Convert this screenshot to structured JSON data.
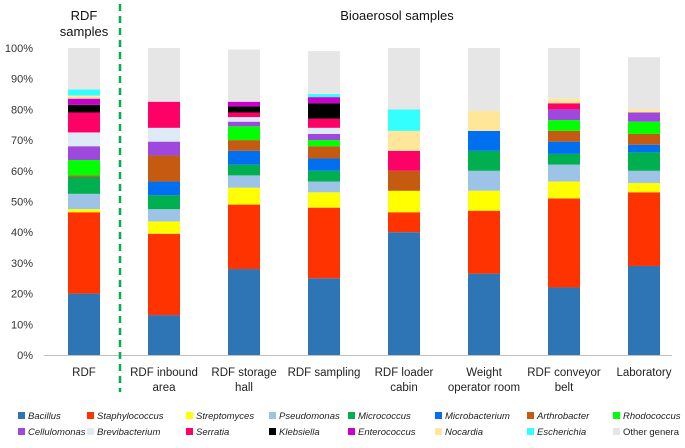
{
  "chart_data": {
    "type": "bar",
    "stacked": true,
    "percent": true,
    "title": "",
    "xlabel": "",
    "ylabel": "",
    "ylim": [
      0,
      100
    ],
    "y_ticks": [
      "0%",
      "10%",
      "20%",
      "30%",
      "40%",
      "50%",
      "60%",
      "70%",
      "80%",
      "90%",
      "100%"
    ],
    "y_tick_values": [
      0,
      10,
      20,
      30,
      40,
      50,
      60,
      70,
      80,
      90,
      100
    ],
    "group_labels": {
      "rdf_samples": [
        "RDF",
        "samples"
      ],
      "bioaerosol_samples": "Bioaerosol samples"
    },
    "categories": [
      [
        "RDF"
      ],
      [
        "RDF inbound",
        "area"
      ],
      [
        "RDF storage",
        "hall"
      ],
      [
        "RDF sampling"
      ],
      [
        "RDF loader",
        "cabin"
      ],
      [
        "Weight",
        "operator room"
      ],
      [
        "RDF conveyor",
        "belt"
      ],
      [
        "Laboratory"
      ]
    ],
    "series": [
      {
        "name": "Bacillus",
        "italic": true,
        "color": "#2E75B6",
        "values": [
          20,
          13,
          28,
          25,
          40,
          26.5,
          22,
          29
        ]
      },
      {
        "name": "Staphylococcus",
        "italic": true,
        "color": "#FF3300",
        "values": [
          26.5,
          26.5,
          21,
          23,
          6.5,
          20.5,
          29,
          24
        ]
      },
      {
        "name": "Streptomyces",
        "italic": true,
        "color": "#FFFF00",
        "values": [
          1,
          4,
          5.5,
          5,
          7,
          6.5,
          5.5,
          3
        ]
      },
      {
        "name": "Pseudomonas",
        "italic": true,
        "color": "#9DC3E6",
        "values": [
          5,
          4,
          4,
          3.5,
          0,
          6.5,
          5.5,
          4
        ]
      },
      {
        "name": "Micrococcus",
        "italic": true,
        "color": "#00B050",
        "values": [
          5.5,
          4.5,
          3.5,
          3.5,
          0,
          6.5,
          3.5,
          6
        ]
      },
      {
        "name": "Microbacterium",
        "italic": true,
        "color": "#0070F0",
        "values": [
          0,
          4.5,
          4.5,
          4,
          0,
          6.5,
          4,
          2.5
        ]
      },
      {
        "name": "Arthrobacter",
        "italic": true,
        "color": "#C55A11",
        "values": [
          0.5,
          8.5,
          3.5,
          4,
          6.5,
          0,
          3.5,
          3.5
        ]
      },
      {
        "name": "Rhodococcus",
        "italic": true,
        "color": "#00FF00",
        "values": [
          5,
          0,
          4.5,
          2,
          0,
          0,
          3.5,
          4
        ]
      },
      {
        "name": "Cellulomonas",
        "italic": true,
        "color": "#9E48DE",
        "values": [
          4.5,
          4.5,
          1.5,
          2,
          0,
          0,
          3.5,
          3
        ]
      },
      {
        "name": "Brevibacterium",
        "italic": true,
        "color": "#DEEBF7",
        "values": [
          4.5,
          4.5,
          1.5,
          2,
          0,
          0,
          0,
          0
        ]
      },
      {
        "name": "Serratia",
        "italic": true,
        "color": "#FF0066",
        "values": [
          6.5,
          8.5,
          1.5,
          3,
          6.5,
          0,
          2,
          0
        ]
      },
      {
        "name": "Klebsiella",
        "italic": true,
        "color": "#000000",
        "values": [
          2.5,
          0,
          2,
          5,
          0,
          0,
          0,
          0
        ]
      },
      {
        "name": "Enterococcus",
        "italic": true,
        "color": "#CC00CC",
        "values": [
          2,
          0,
          1.5,
          2,
          0,
          0,
          0,
          0
        ]
      },
      {
        "name": "Nocardia",
        "italic": true,
        "color": "#FFE699",
        "values": [
          1,
          0,
          0,
          0,
          6.5,
          6.5,
          1.5,
          1
        ]
      },
      {
        "name": "Escherichia",
        "italic": true,
        "color": "#33FFFF",
        "values": [
          2,
          0,
          0,
          1,
          7,
          0,
          0,
          0
        ]
      },
      {
        "name": "Other genera",
        "italic": false,
        "color": "#E7E6E6",
        "values": [
          13.5,
          17.5,
          17,
          14,
          20,
          20.5,
          16.5,
          17
        ]
      }
    ]
  },
  "colors": {
    "divider": "#00B050",
    "axis": "#BFBFBF"
  }
}
